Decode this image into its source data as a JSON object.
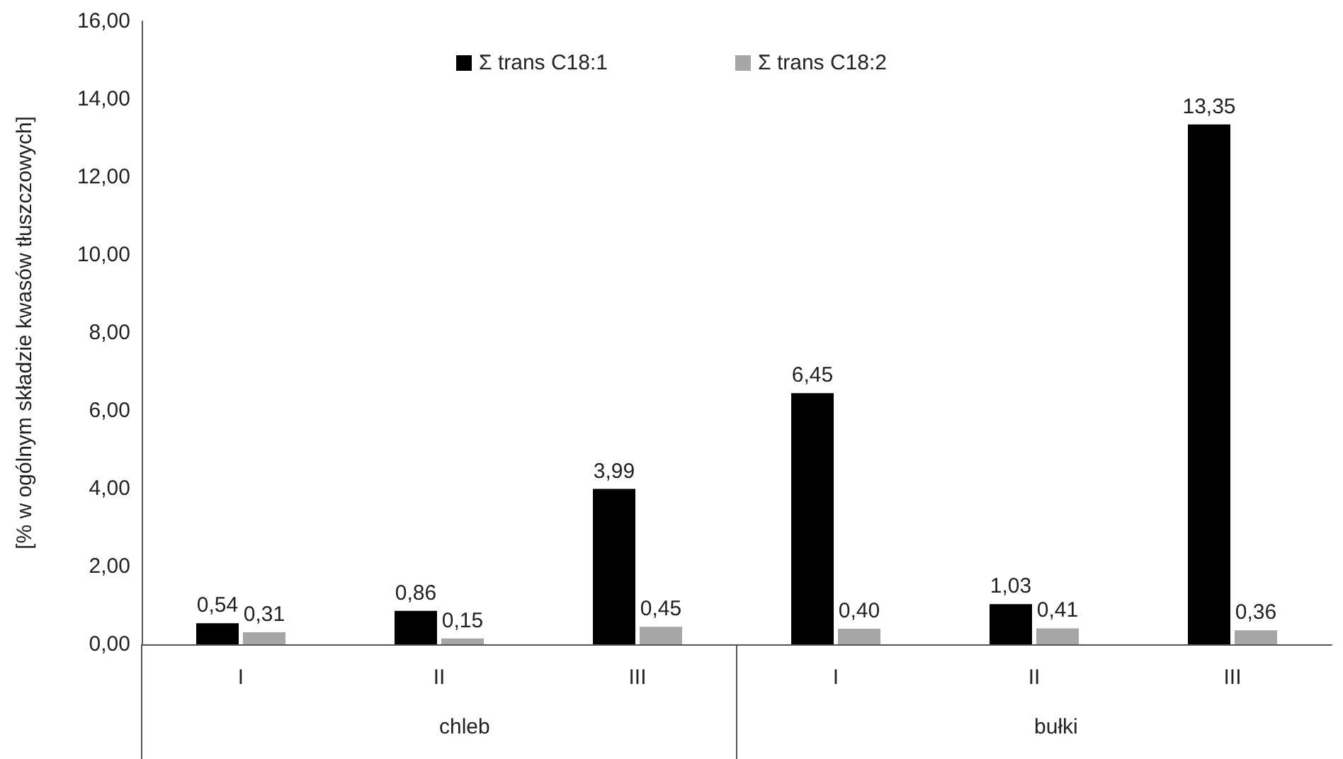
{
  "chart_data": {
    "type": "bar",
    "ylabel": "[% w ogólnym składzie kwasów tłuszczowych]",
    "categories": [
      "I",
      "II",
      "III",
      "I",
      "II",
      "III"
    ],
    "annotations": [
      "chleb",
      "bułki"
    ],
    "series": [
      {
        "name": "Σ trans C18:1",
        "color": "#000000",
        "values": [
          0.54,
          0.86,
          3.99,
          6.45,
          1.03,
          13.35
        ],
        "value_labels": [
          "0,54",
          "0,86",
          "3,99",
          "6,45",
          "1,03",
          "13,35"
        ]
      },
      {
        "name": "Σ trans C18:2",
        "color": "#a6a6a6",
        "values": [
          0.31,
          0.15,
          0.45,
          0.4,
          0.41,
          0.36
        ],
        "value_labels": [
          "0,31",
          "0,15",
          "0,45",
          "0,40",
          "0,41",
          "0,36"
        ]
      }
    ],
    "ylim": [
      0,
      16
    ],
    "yticks": [
      {
        "value": 0,
        "label": "0,00"
      },
      {
        "value": 2,
        "label": "2,00"
      },
      {
        "value": 4,
        "label": "4,00"
      },
      {
        "value": 6,
        "label": "6,00"
      },
      {
        "value": 8,
        "label": "8,00"
      },
      {
        "value": 10,
        "label": "10,00"
      },
      {
        "value": 12,
        "label": "12,00"
      },
      {
        "value": 14,
        "label": "14,00"
      },
      {
        "value": 16,
        "label": "16,00"
      }
    ],
    "grid": false,
    "legend": "top"
  }
}
